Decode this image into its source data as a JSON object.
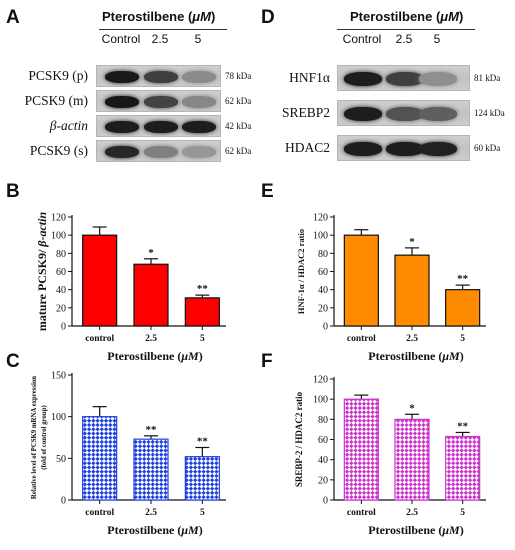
{
  "colors": {
    "panel_b_bar": "#ff0000",
    "panel_c_bar_stroke": "#1f3fe0",
    "panel_e_bar": "#ff8c00",
    "panel_f_bar_stroke": "#cc33cc"
  },
  "panel_a": {
    "letter": "A",
    "title_prefix": "Pterostilbene (",
    "title_unit": "μM",
    "title_suffix": ")",
    "lanes": [
      "Control",
      "2.5",
      "5"
    ],
    "rows": [
      {
        "label": "PCSK9 (p)",
        "kda": "78 kDa",
        "italic": false,
        "intensities": [
          0.92,
          0.72,
          0.32
        ]
      },
      {
        "label": "PCSK9 (m)",
        "kda": "62 kDa",
        "italic": false,
        "intensities": [
          0.93,
          0.7,
          0.34
        ]
      },
      {
        "label": "β-actin",
        "kda": "42 kDa",
        "italic": true,
        "intensities": [
          0.9,
          0.9,
          0.9
        ]
      },
      {
        "label": "PCSK9 (s)",
        "kda": "62 kDa",
        "italic": false,
        "intensities": [
          0.85,
          0.38,
          0.26
        ]
      }
    ]
  },
  "panel_d": {
    "letter": "D",
    "title_prefix": "Pterostilbene (",
    "title_unit": "μM",
    "title_suffix": ")",
    "lanes": [
      "Control",
      "2.5",
      "5"
    ],
    "rows": [
      {
        "label": "HNF1α",
        "kda": "81 kDa",
        "italic": false,
        "intensities": [
          0.9,
          0.72,
          0.3
        ]
      },
      {
        "label": "SREBP2",
        "kda": "124 kDa",
        "italic": false,
        "intensities": [
          0.9,
          0.62,
          0.55
        ]
      },
      {
        "label": "HDAC2",
        "kda": "60 kDa",
        "italic": false,
        "intensities": [
          0.9,
          0.9,
          0.88
        ]
      }
    ]
  },
  "chart_data": [
    {
      "panel": "B",
      "type": "bar",
      "categories": [
        "control",
        "2.5",
        "5"
      ],
      "values": [
        100,
        68,
        31
      ],
      "errors": [
        9,
        6,
        3
      ],
      "significance": [
        "",
        "*",
        "**"
      ],
      "ylim": [
        0,
        120
      ],
      "yticks": [
        0,
        20,
        40,
        60,
        80,
        100,
        120
      ],
      "ylabel": "mature PCSK9/ β-actin",
      "xlabel": "Pterostilbene (μM)",
      "fill": "solid",
      "color": "#ff0000"
    },
    {
      "panel": "C",
      "type": "bar",
      "categories": [
        "control",
        "2.5",
        "5"
      ],
      "values": [
        100,
        73,
        52
      ],
      "errors": [
        12,
        4,
        11
      ],
      "significance": [
        "",
        "**",
        "**"
      ],
      "ylim": [
        0,
        150
      ],
      "yticks": [
        0,
        50,
        100,
        150
      ],
      "ylabel_lines": [
        "Relative level of PCSK9 mRNA expression",
        "(fold of control group)"
      ],
      "xlabel": "Pterostilbene (μM)",
      "fill": "checker",
      "color": "#1f3fe0"
    },
    {
      "panel": "E",
      "type": "bar",
      "categories": [
        "control",
        "2.5",
        "5"
      ],
      "values": [
        100,
        78,
        40
      ],
      "errors": [
        6,
        8,
        5
      ],
      "significance": [
        "",
        "*",
        "**"
      ],
      "ylim": [
        0,
        120
      ],
      "yticks": [
        0,
        20,
        40,
        60,
        80,
        100,
        120
      ],
      "ylabel": "HNF-1α / HDAC2 ratio",
      "xlabel": "Pterostilbene (μM)",
      "fill": "solid",
      "color": "#ff8c00"
    },
    {
      "panel": "F",
      "type": "bar",
      "categories": [
        "control",
        "2.5",
        "5"
      ],
      "values": [
        100,
        80,
        63
      ],
      "errors": [
        4,
        5,
        4
      ],
      "significance": [
        "",
        "*",
        "**"
      ],
      "ylim": [
        0,
        120
      ],
      "yticks": [
        0,
        20,
        40,
        60,
        80,
        100,
        120
      ],
      "ylabel": "SREBP-2 / HDAC2 ratio",
      "xlabel": "Pterostilbene (μM)",
      "fill": "checker",
      "color": "#cc33cc"
    }
  ]
}
